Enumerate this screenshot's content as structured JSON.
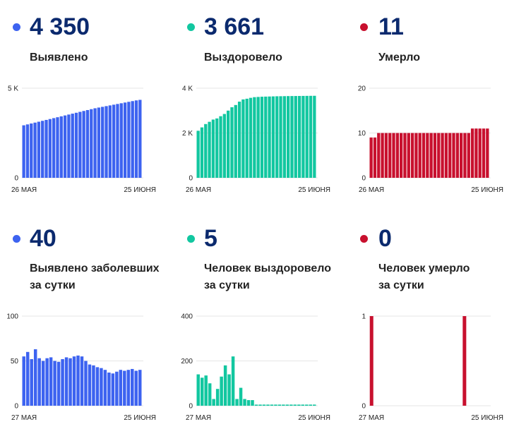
{
  "colors": {
    "blue": "#3d63f0",
    "teal": "#12c7a0",
    "red": "#c8102e"
  },
  "panels": [
    {
      "value": "4 350",
      "label_lines": [
        "Выявлено"
      ],
      "color": "#3d63f0",
      "chart_data": {
        "type": "bar",
        "title": "",
        "xlabel": "",
        "ylabel": "",
        "ylim": [
          0,
          5000
        ],
        "y_ticks": [
          0,
          5000
        ],
        "y_tick_labels": [
          "0",
          "5 K"
        ],
        "x_tick_labels": [
          "26 МАЯ",
          "25 ИЮНЯ"
        ],
        "grid": true,
        "values": [
          2930,
          2980,
          3030,
          3080,
          3130,
          3180,
          3230,
          3280,
          3330,
          3380,
          3430,
          3480,
          3530,
          3580,
          3630,
          3680,
          3730,
          3780,
          3830,
          3880,
          3920,
          3960,
          4000,
          4040,
          4080,
          4120,
          4160,
          4200,
          4240,
          4280,
          4320,
          4350
        ]
      }
    },
    {
      "value": "3 661",
      "label_lines": [
        "Выздоровело"
      ],
      "color": "#12c7a0",
      "chart_data": {
        "type": "bar",
        "title": "",
        "xlabel": "",
        "ylabel": "",
        "ylim": [
          0,
          4000
        ],
        "y_ticks": [
          0,
          2000,
          4000
        ],
        "y_tick_labels": [
          "0",
          "2 K",
          "4 K"
        ],
        "x_tick_labels": [
          "26 МАЯ",
          "25 ИЮНЯ"
        ],
        "grid": true,
        "values": [
          2100,
          2250,
          2400,
          2500,
          2600,
          2650,
          2750,
          2850,
          3000,
          3150,
          3250,
          3400,
          3500,
          3530,
          3570,
          3600,
          3610,
          3620,
          3625,
          3630,
          3635,
          3640,
          3642,
          3645,
          3648,
          3650,
          3652,
          3654,
          3656,
          3658,
          3660,
          3661
        ]
      }
    },
    {
      "value": "11",
      "label_lines": [
        "Умерло"
      ],
      "color": "#c8102e",
      "chart_data": {
        "type": "bar",
        "title": "",
        "xlabel": "",
        "ylabel": "",
        "ylim": [
          0,
          20
        ],
        "y_ticks": [
          0,
          10,
          20
        ],
        "y_tick_labels": [
          "0",
          "10",
          "20"
        ],
        "x_tick_labels": [
          "26 МАЯ",
          "25 ИЮНЯ"
        ],
        "grid": true,
        "values": [
          9,
          9,
          10,
          10,
          10,
          10,
          10,
          10,
          10,
          10,
          10,
          10,
          10,
          10,
          10,
          10,
          10,
          10,
          10,
          10,
          10,
          10,
          10,
          10,
          10,
          10,
          10,
          11,
          11,
          11,
          11,
          11
        ]
      }
    },
    {
      "value": "40",
      "label_lines": [
        "Выявлено заболевших",
        "за сутки"
      ],
      "color": "#3d63f0",
      "chart_data": {
        "type": "bar",
        "title": "",
        "xlabel": "",
        "ylabel": "",
        "ylim": [
          0,
          100
        ],
        "y_ticks": [
          0,
          50,
          100
        ],
        "y_tick_labels": [
          "0",
          "50",
          "100"
        ],
        "x_tick_labels": [
          "27 МАЯ",
          "25 ИЮНЯ"
        ],
        "grid": true,
        "values": [
          55,
          60,
          52,
          63,
          53,
          50,
          53,
          54,
          50,
          49,
          52,
          54,
          53,
          55,
          56,
          55,
          50,
          46,
          45,
          43,
          42,
          40,
          37,
          36,
          38,
          40,
          39,
          40,
          41,
          39,
          40
        ]
      }
    },
    {
      "value": "5",
      "label_lines": [
        "Человек выздоровело",
        "за сутки"
      ],
      "color": "#12c7a0",
      "chart_data": {
        "type": "bar",
        "title": "",
        "xlabel": "",
        "ylabel": "",
        "ylim": [
          0,
          400
        ],
        "y_ticks": [
          0,
          200,
          400
        ],
        "y_tick_labels": [
          "0",
          "200",
          "400"
        ],
        "x_tick_labels": [
          "27 МАЯ",
          "25 ИЮНЯ"
        ],
        "grid": true,
        "values": [
          140,
          125,
          135,
          100,
          30,
          75,
          130,
          180,
          140,
          220,
          30,
          80,
          30,
          25,
          25,
          5,
          5,
          5,
          5,
          5,
          5,
          5,
          5,
          5,
          5,
          5,
          5,
          5,
          5,
          5,
          5
        ]
      }
    },
    {
      "value": "0",
      "label_lines": [
        "Человек умерло",
        "за сутки"
      ],
      "color": "#c8102e",
      "chart_data": {
        "type": "bar",
        "title": "",
        "xlabel": "",
        "ylabel": "",
        "ylim": [
          0,
          1
        ],
        "y_ticks": [
          0,
          1
        ],
        "y_tick_labels": [
          "0",
          "1"
        ],
        "x_tick_labels": [
          "27 МАЯ",
          "25 ИЮНЯ"
        ],
        "grid": true,
        "values": [
          1,
          0,
          0,
          0,
          0,
          0,
          0,
          0,
          0,
          0,
          0,
          0,
          0,
          0,
          0,
          0,
          0,
          0,
          0,
          0,
          0,
          0,
          0,
          0,
          1,
          0,
          0,
          0,
          0,
          0,
          0
        ]
      }
    }
  ]
}
